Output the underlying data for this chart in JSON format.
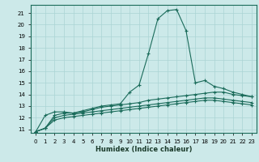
{
  "xlabel": "Humidex (Indice chaleur)",
  "xlim": [
    -0.5,
    23.5
  ],
  "ylim": [
    10.7,
    21.7
  ],
  "yticks": [
    11,
    12,
    13,
    14,
    15,
    16,
    17,
    18,
    19,
    20,
    21
  ],
  "xticks": [
    0,
    1,
    2,
    3,
    4,
    5,
    6,
    7,
    8,
    9,
    10,
    11,
    12,
    13,
    14,
    15,
    16,
    17,
    18,
    19,
    20,
    21,
    22,
    23
  ],
  "bg_color": "#cce9e9",
  "grid_color": "#aad4d4",
  "line_color": "#1a6b5a",
  "lines": [
    [
      10.8,
      12.2,
      12.5,
      12.5,
      12.4,
      12.6,
      12.8,
      13.0,
      13.1,
      13.2,
      14.2,
      14.8,
      17.5,
      20.5,
      21.2,
      21.3,
      19.5,
      15.0,
      15.2,
      14.7,
      14.5,
      14.2,
      14.0,
      13.8
    ],
    [
      10.8,
      11.1,
      12.2,
      12.4,
      12.4,
      12.5,
      12.7,
      12.9,
      13.0,
      13.1,
      13.2,
      13.3,
      13.5,
      13.6,
      13.7,
      13.8,
      13.9,
      14.0,
      14.1,
      14.2,
      14.2,
      14.0,
      13.9,
      13.8
    ],
    [
      10.8,
      11.1,
      12.0,
      12.2,
      12.3,
      12.4,
      12.5,
      12.6,
      12.7,
      12.8,
      12.9,
      13.0,
      13.1,
      13.2,
      13.3,
      13.4,
      13.5,
      13.6,
      13.7,
      13.7,
      13.6,
      13.5,
      13.4,
      13.3
    ],
    [
      10.8,
      11.1,
      11.8,
      12.0,
      12.1,
      12.2,
      12.3,
      12.4,
      12.5,
      12.6,
      12.7,
      12.8,
      12.9,
      13.0,
      13.1,
      13.2,
      13.3,
      13.4,
      13.5,
      13.5,
      13.4,
      13.3,
      13.2,
      13.1
    ]
  ]
}
